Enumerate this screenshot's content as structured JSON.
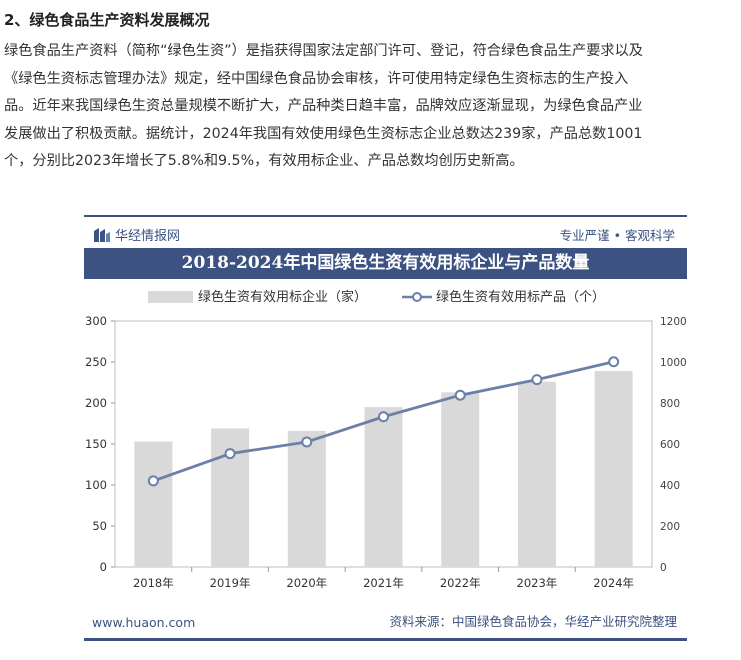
{
  "article": {
    "heading": "2、绿色食品生产资料发展概况",
    "lines": [
      "绿色食品生产资料（简称“绿色生资”）是指获得国家法定部门许可、登记，符合绿色食品生产要求以及",
      "《绿色生资标志管理办法》规定，经中国绿色食品协会审核，许可使用特定绿色生资标志的生产投入",
      "品。近年来我国绿色生资总量规模不断扩大，产品种类日趋丰富，品牌效应逐渐显现，为绿色食品产业",
      "发展做出了积极贡献。据统计，2024年我国有效使用绿色生资标志企业总数达239家，产品总数1001",
      "个，分别比2023年增长了5.8%和9.5%，有效用标企业、产品总数均创历史新高。"
    ]
  },
  "card": {
    "brand": "华经情报网",
    "slogan": "专业严谨 • 客观科学",
    "footer_url": "www.huaon.com",
    "footer_source": "资料来源：中国绿色食品协会，华经产业研究院整理",
    "colors": {
      "navy": "#3b5282",
      "bar": "#d9d9d9",
      "line": "#6a80a8"
    }
  },
  "chart_data": {
    "type": "bar+line",
    "title": "2018-2024年中国绿色生资有效用标企业与产品数量",
    "categories": [
      "2018年",
      "2019年",
      "2020年",
      "2021年",
      "2022年",
      "2023年",
      "2024年"
    ],
    "series": [
      {
        "name": "绿色生资有效用标企业（家）",
        "type": "bar",
        "axis": "left",
        "values": [
          153,
          169,
          166,
          195,
          213,
          226,
          239
        ]
      },
      {
        "name": "绿色生资有效用标产品（个）",
        "type": "line",
        "axis": "right",
        "values": [
          420,
          553,
          610,
          733,
          838,
          914,
          1001
        ]
      }
    ],
    "y_left": {
      "min": 0,
      "max": 300,
      "ticks": [
        "0",
        "50",
        "100",
        "150",
        "200",
        "250",
        "300"
      ]
    },
    "y_right": {
      "min": 0,
      "max": 1200,
      "ticks": [
        "0",
        "200",
        "400",
        "600",
        "800",
        "1000",
        "1200"
      ]
    },
    "legend_position": "top"
  }
}
